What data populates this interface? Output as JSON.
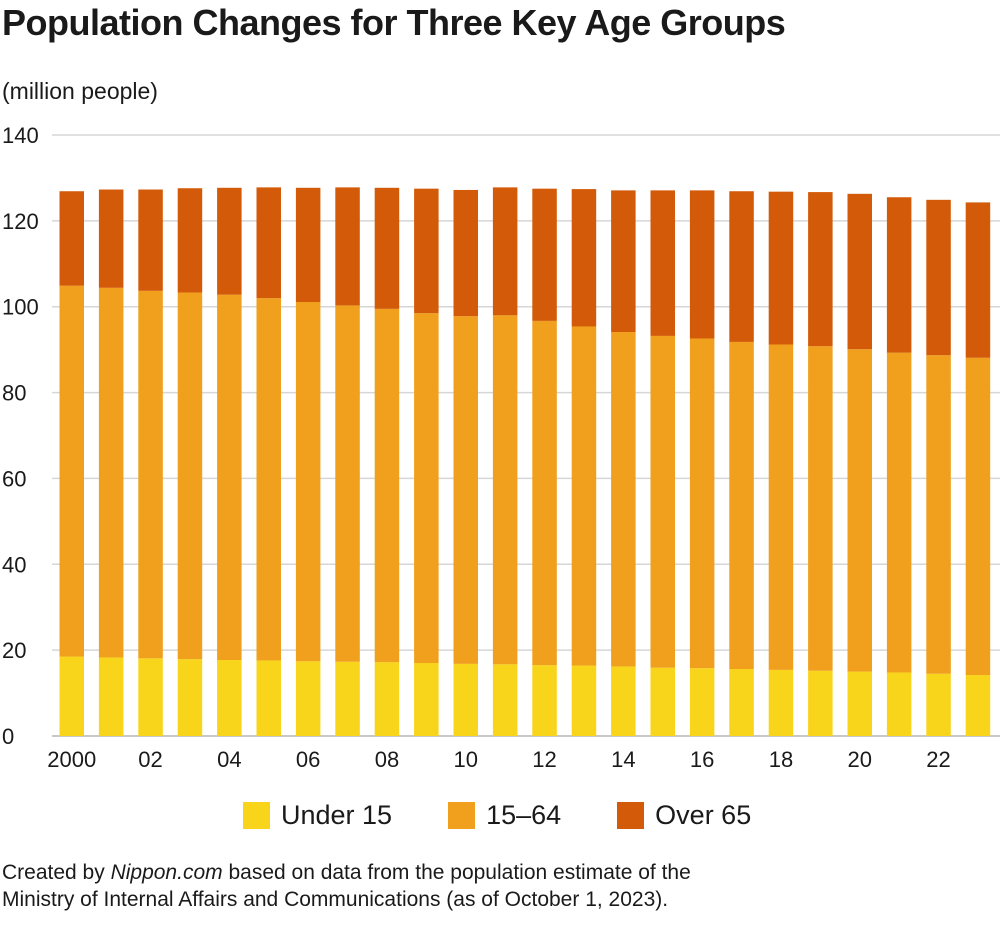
{
  "chart_data": {
    "type": "bar",
    "stacked": true,
    "title": "Population Changes for Three Key Age Groups",
    "ylabel": "(million people)",
    "xlabel": "",
    "ylim": [
      0,
      140
    ],
    "yticks": [
      "0",
      "20",
      "40",
      "60",
      "80",
      "100",
      "120",
      "140"
    ],
    "ytick_values": [
      0,
      20,
      40,
      60,
      80,
      100,
      120,
      140
    ],
    "grid": true,
    "categories": [
      2000,
      2001,
      2002,
      2003,
      2004,
      2005,
      2006,
      2007,
      2008,
      2009,
      2010,
      2011,
      2012,
      2013,
      2014,
      2015,
      2016,
      2017,
      2018,
      2019,
      2020,
      2021,
      2022,
      2023
    ],
    "xtick_labels": [
      "2000",
      "",
      "02",
      "",
      "04",
      "",
      "06",
      "",
      "08",
      "",
      "10",
      "",
      "12",
      "",
      "14",
      "",
      "16",
      "",
      "18",
      "",
      "20",
      "",
      "22",
      ""
    ],
    "series": [
      {
        "name": "Under 15",
        "color": "#f8d41a",
        "values": [
          18.5,
          18.3,
          18.1,
          17.9,
          17.7,
          17.6,
          17.4,
          17.3,
          17.2,
          17.0,
          16.8,
          16.7,
          16.5,
          16.4,
          16.2,
          15.9,
          15.8,
          15.6,
          15.4,
          15.2,
          15.0,
          14.8,
          14.5,
          14.2
        ]
      },
      {
        "name": "15–64",
        "color": "#f0a01c",
        "values": [
          86.4,
          86.1,
          85.6,
          85.4,
          85.1,
          84.4,
          83.7,
          83.0,
          82.3,
          81.5,
          81.0,
          81.3,
          80.2,
          79.0,
          77.9,
          77.3,
          76.8,
          76.2,
          75.8,
          75.6,
          75.1,
          74.5,
          74.2,
          73.9
        ]
      },
      {
        "name": "Over 65",
        "color": "#d35a08",
        "values": [
          22.0,
          22.9,
          23.6,
          24.3,
          24.9,
          25.8,
          26.6,
          27.5,
          28.2,
          29.0,
          29.4,
          29.8,
          30.8,
          32.0,
          33.0,
          33.9,
          34.5,
          35.1,
          35.6,
          35.9,
          36.2,
          36.2,
          36.2,
          36.2
        ]
      }
    ]
  },
  "legend": {
    "items": [
      {
        "label": "Under 15",
        "color": "#f8d41a"
      },
      {
        "label": "15–64",
        "color": "#f0a01c"
      },
      {
        "label": "Over 65",
        "color": "#d35a08"
      }
    ]
  },
  "source": {
    "prefix": "Created by ",
    "site": "Nippon.com",
    "suffix": " based on data from the population estimate of the Ministry of Internal Affairs and Communications (as of October 1, 2023)."
  }
}
